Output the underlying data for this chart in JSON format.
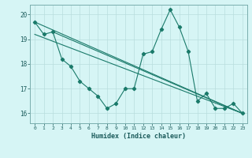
{
  "xlabel": "Humidex (Indice chaleur)",
  "bg_color": "#d6f5f5",
  "grid_color": "#b8dede",
  "line_color": "#1a7a6a",
  "xlim": [
    -0.5,
    23.5
  ],
  "ylim": [
    15.6,
    20.4
  ],
  "yticks": [
    16,
    17,
    18,
    19,
    20
  ],
  "xticks": [
    0,
    1,
    2,
    3,
    4,
    5,
    6,
    7,
    8,
    9,
    10,
    11,
    12,
    13,
    14,
    15,
    16,
    17,
    18,
    19,
    20,
    21,
    22,
    23
  ],
  "series1_x": [
    0,
    1,
    2,
    3,
    4,
    5,
    6,
    7,
    8,
    9,
    10,
    11,
    12,
    13,
    14,
    15,
    16,
    17,
    18,
    19,
    20,
    21,
    22,
    23
  ],
  "series1_y": [
    19.7,
    19.2,
    19.3,
    18.2,
    17.9,
    17.3,
    17.0,
    16.7,
    16.2,
    16.4,
    17.0,
    17.0,
    18.4,
    18.5,
    19.4,
    20.2,
    19.5,
    18.5,
    16.5,
    16.8,
    16.2,
    16.2,
    16.4,
    16.0
  ],
  "trend_lines": [
    {
      "x0": 0,
      "y0": 19.7,
      "x1": 23,
      "y1": 16.0
    },
    {
      "x0": 0,
      "y0": 19.2,
      "x1": 23,
      "y1": 16.0
    },
    {
      "x0": 2,
      "y0": 19.3,
      "x1": 23,
      "y1": 16.0
    }
  ]
}
